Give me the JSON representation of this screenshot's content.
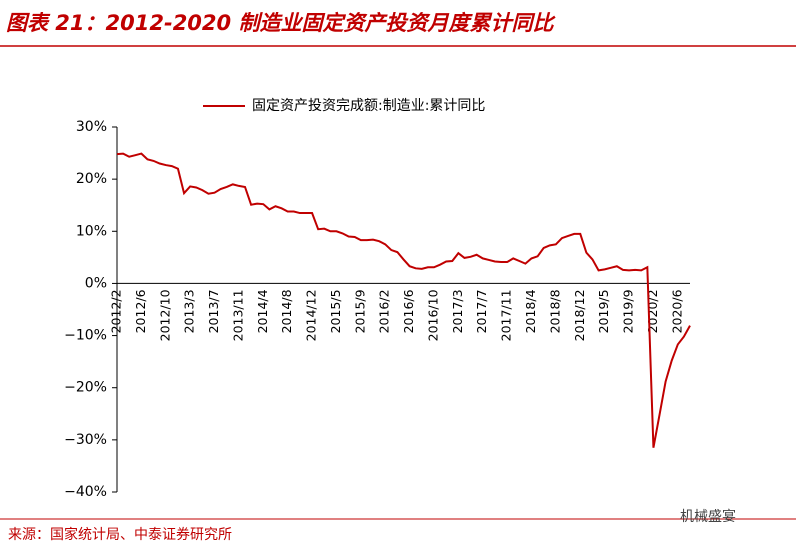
{
  "chart_data": {
    "type": "line",
    "title": "图表 21：2012-2020 制造业固定资产投资月度累计同比",
    "source": "来源：国家统计局、中泰证券研究所",
    "watermark": "机械盛宴",
    "categories": [
      "2012/2",
      null,
      null,
      null,
      "2012/6",
      null,
      null,
      null,
      "2012/10",
      null,
      null,
      null,
      "2013/3",
      null,
      null,
      null,
      "2013/7",
      null,
      null,
      null,
      "2013/11",
      null,
      null,
      null,
      "2014/4",
      null,
      null,
      null,
      "2014/8",
      null,
      null,
      null,
      "2014/12",
      null,
      null,
      null,
      "2015/5",
      null,
      null,
      null,
      "2015/9",
      null,
      null,
      null,
      "2016/2",
      null,
      null,
      null,
      "2016/6",
      null,
      null,
      null,
      "2016/10",
      null,
      null,
      null,
      "2017/3",
      null,
      null,
      null,
      "2017/7",
      null,
      null,
      null,
      "2017/11",
      null,
      null,
      null,
      "2018/4",
      null,
      null,
      null,
      "2018/8",
      null,
      null,
      null,
      "2018/12",
      null,
      null,
      null,
      "2019/5",
      null,
      null,
      null,
      "2019/9",
      null,
      null,
      null,
      "2020/2",
      null,
      null,
      null,
      "2020/6",
      null,
      null
    ],
    "series": [
      {
        "name": "固定资产投资完成额:制造业:累计同比",
        "color": "#c00000",
        "values": [
          24.8,
          24.9,
          24.3,
          24.6,
          24.9,
          23.8,
          23.5,
          23.0,
          22.7,
          22.5,
          22.0,
          17.3,
          18.6,
          18.4,
          17.9,
          17.2,
          17.4,
          18.1,
          18.5,
          19.0,
          18.7,
          18.5,
          15.1,
          15.3,
          15.2,
          14.2,
          14.8,
          14.4,
          13.8,
          13.8,
          13.5,
          13.5,
          13.5,
          10.4,
          10.5,
          10.0,
          10.0,
          9.6,
          9.0,
          8.9,
          8.3,
          8.3,
          8.4,
          8.1,
          7.5,
          6.4,
          6.0,
          4.6,
          3.3,
          2.9,
          2.8,
          3.1,
          3.1,
          3.6,
          4.2,
          4.3,
          5.8,
          4.9,
          5.1,
          5.5,
          4.8,
          4.5,
          4.2,
          4.1,
          4.1,
          4.8,
          4.3,
          3.8,
          4.8,
          5.2,
          6.8,
          7.3,
          7.5,
          8.7,
          9.1,
          9.5,
          9.5,
          5.9,
          4.6,
          2.5,
          2.7,
          3.0,
          3.3,
          2.6,
          2.5,
          2.6,
          2.5,
          3.1,
          -31.5,
          -25.2,
          -18.8,
          -14.8,
          -11.7,
          -10.2,
          -8.1
        ]
      }
    ],
    "ylim": [
      -40,
      30
    ],
    "yticks": [
      {
        "value": -40,
        "label": "−40%"
      },
      {
        "value": -30,
        "label": "−30%"
      },
      {
        "value": -20,
        "label": "−20%"
      },
      {
        "value": -10,
        "label": "−10%"
      },
      {
        "value": 0,
        "label": "0%"
      },
      {
        "value": 10,
        "label": "10%"
      },
      {
        "value": 20,
        "label": "20%"
      },
      {
        "value": 30,
        "label": "30%"
      }
    ]
  }
}
